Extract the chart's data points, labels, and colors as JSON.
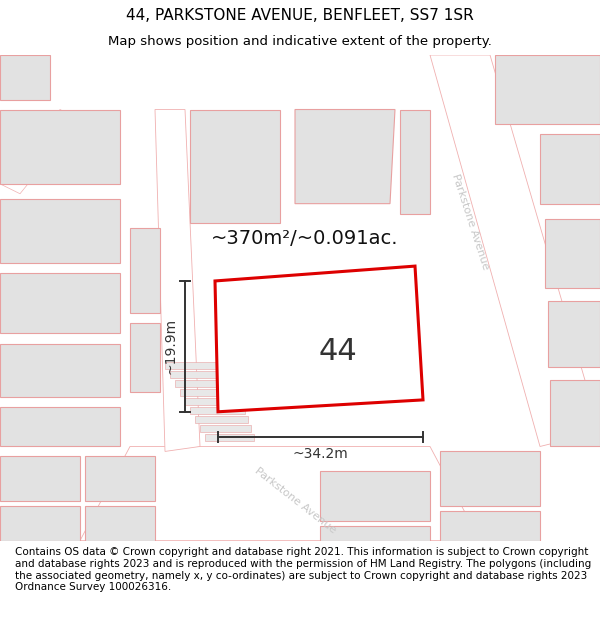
{
  "title_line1": "44, PARKSTONE AVENUE, BENFLEET, SS7 1SR",
  "title_line2": "Map shows position and indicative extent of the property.",
  "footer_text": "Contains OS data © Crown copyright and database right 2021. This information is subject to Crown copyright and database rights 2023 and is reproduced with the permission of HM Land Registry. The polygons (including the associated geometry, namely x, y co-ordinates) are subject to Crown copyright and database rights 2023 Ordnance Survey 100026316.",
  "property_number": "44",
  "area_label": "~370m²/~0.091ac.",
  "width_label": "~34.2m",
  "height_label": "~19.9m",
  "map_bg": "#f7f7f7",
  "plot_outline_color": "#dd0000",
  "building_fill": "#e2e2e2",
  "building_edge": "#e8a0a0",
  "road_fill": "#ffffff",
  "road_edge": "#f0b0b0",
  "road_label_color": "#c8c8c8",
  "dim_color": "#333333",
  "title_fontsize": 11,
  "subtitle_fontsize": 9.5,
  "footer_fontsize": 7.5,
  "area_fontsize": 14,
  "num_fontsize": 22,
  "dim_fontsize": 10
}
